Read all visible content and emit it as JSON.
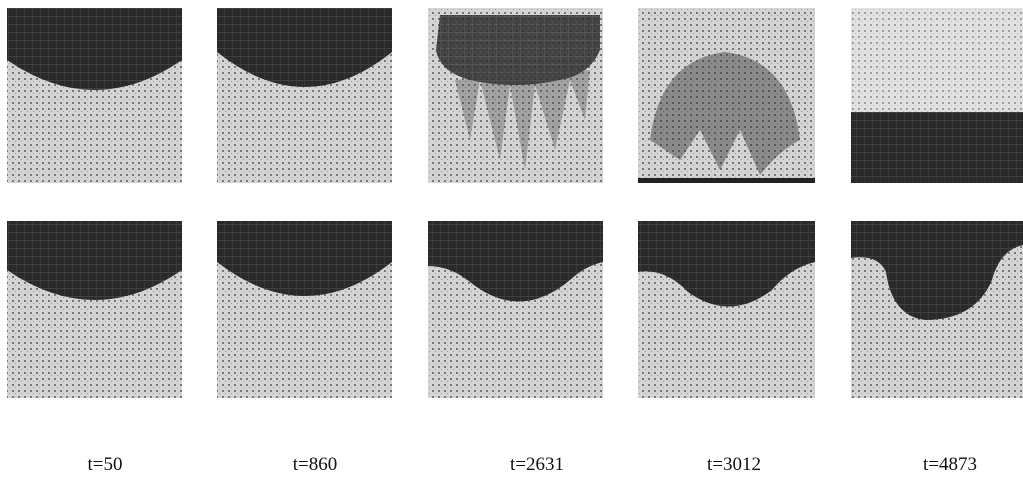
{
  "figure": {
    "labels": [
      "t=50",
      "t=860",
      "t=2631",
      "t=3012",
      "t=4873"
    ]
  }
}
